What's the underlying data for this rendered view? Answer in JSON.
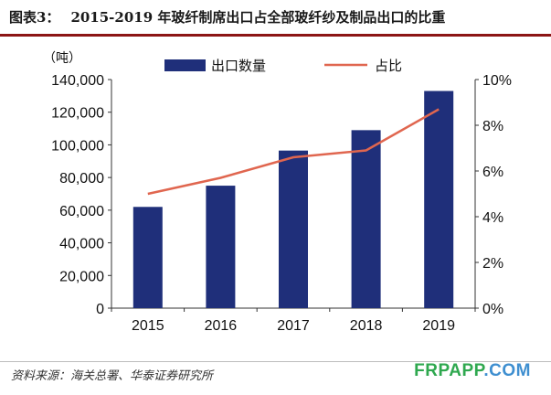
{
  "header": {
    "figure_no": "图表3：",
    "title": "2015-2019 年玻纤制席出口占全部玻纤纱及制品出口的比重"
  },
  "footer": {
    "source": "资料来源：海关总署、华泰证券研究所",
    "watermark_a": "FRPAPP",
    "watermark_b": ".COM"
  },
  "colors": {
    "bar": "#1f2f7a",
    "line": "#e0664f",
    "rule": "#8c1515",
    "watermark_a": "#2fa84f",
    "watermark_b": "#3f8fd0"
  },
  "chart_data": {
    "type": "bar",
    "categories": [
      "2015",
      "2016",
      "2017",
      "2018",
      "2019"
    ],
    "y_unit": "（吨）",
    "ylim": [
      0,
      140000
    ],
    "y_ticks": [
      "0",
      "20,000",
      "40,000",
      "60,000",
      "80,000",
      "100,000",
      "120,000",
      "140,000"
    ],
    "y2lim": [
      0,
      10
    ],
    "y2_ticks": [
      "0%",
      "2%",
      "4%",
      "6%",
      "8%",
      "10%"
    ],
    "legend_position": "top",
    "grid": false,
    "series": [
      {
        "name": "出口数量",
        "type": "bar",
        "axis": "left",
        "values": [
          62000,
          75000,
          96500,
          109000,
          133000
        ]
      },
      {
        "name": "占比",
        "type": "line",
        "axis": "right",
        "values": [
          5.0,
          5.7,
          6.6,
          6.9,
          8.7
        ]
      }
    ]
  }
}
